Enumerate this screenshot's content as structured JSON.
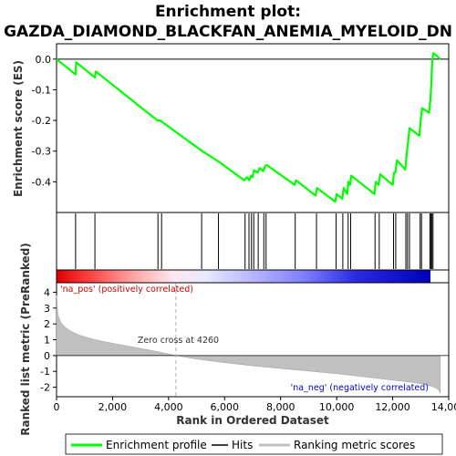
{
  "title_line1": "Enrichment plot:",
  "title_line2": "GAZDA_DIAMOND_BLACKFAN_ANEMIA_MYELOID_DN",
  "chart_data": [
    {
      "type": "line",
      "ylabel": "Enrichment score (ES)",
      "xlim": [
        0,
        14000
      ],
      "ylim": [
        -0.5,
        0.05
      ],
      "yticks": [
        "0.0",
        "-0.1",
        "-0.2",
        "-0.3",
        "-0.4"
      ],
      "ytick_values": [
        0.0,
        -0.1,
        -0.2,
        -0.3,
        -0.4
      ],
      "series": [
        {
          "name": "Enrichment profile",
          "color": "#00ff00",
          "x": [
            0,
            680,
            700,
            1370,
            1400,
            3600,
            3700,
            5200,
            5800,
            6700,
            6800,
            6880,
            6950,
            7000,
            7050,
            7180,
            7250,
            7380,
            7450,
            7500,
            8500,
            8550,
            9250,
            9300,
            9950,
            10000,
            10200,
            10250,
            10380,
            10420,
            10480,
            10520,
            11350,
            11400,
            11500,
            11550,
            12000,
            12050,
            12100,
            12150,
            12450,
            12500,
            12550,
            12600,
            12950,
            13000,
            13050,
            13300,
            13350,
            13380,
            13400,
            13420,
            13450,
            13700
          ],
          "y": [
            0.0,
            -0.05,
            -0.01,
            -0.06,
            -0.04,
            -0.2,
            -0.2,
            -0.3,
            -0.335,
            -0.395,
            -0.385,
            -0.395,
            -0.38,
            -0.385,
            -0.362,
            -0.37,
            -0.355,
            -0.365,
            -0.348,
            -0.345,
            -0.41,
            -0.395,
            -0.445,
            -0.42,
            -0.465,
            -0.44,
            -0.455,
            -0.42,
            -0.44,
            -0.4,
            -0.41,
            -0.38,
            -0.44,
            -0.4,
            -0.41,
            -0.375,
            -0.41,
            -0.37,
            -0.37,
            -0.33,
            -0.36,
            -0.31,
            -0.27,
            -0.225,
            -0.25,
            -0.2,
            -0.16,
            -0.175,
            -0.13,
            -0.08,
            -0.03,
            0.0,
            0.02,
            0.0
          ]
        }
      ]
    },
    {
      "type": "scatter",
      "title": "Hits",
      "xlim": [
        0,
        14000
      ],
      "hits": [
        680,
        1370,
        3620,
        3750,
        5180,
        5780,
        6730,
        6870,
        6960,
        7040,
        7200,
        7400,
        7480,
        8520,
        9280,
        9980,
        10220,
        10410,
        10500,
        11370,
        11520,
        12030,
        12110,
        12470,
        12530,
        12600,
        12980,
        13030,
        13330,
        13360,
        13400,
        13440
      ]
    },
    {
      "type": "area",
      "ylabel": "Ranked list metric (PreRanked)",
      "xlabel": "Rank in Ordered Dataset",
      "xlim": [
        0,
        14000
      ],
      "ylim": [
        -2.6,
        4.6
      ],
      "xticks": [
        "0",
        "2,000",
        "4,000",
        "6,000",
        "8,000",
        "10,000",
        "12,000",
        "14,000"
      ],
      "xtick_values": [
        0,
        2000,
        4000,
        6000,
        8000,
        10000,
        12000,
        14000
      ],
      "yticks": [
        "4",
        "3",
        "2",
        "1",
        "0",
        "-1",
        "-2"
      ],
      "ytick_values": [
        4,
        3,
        2,
        1,
        0,
        -1,
        -2
      ],
      "series": [
        {
          "name": "Ranking metric scores",
          "color": "#c0c0c0",
          "x": [
            0,
            50,
            150,
            300,
            500,
            800,
            1200,
            1700,
            2300,
            3000,
            3800,
            4260,
            5000,
            6000,
            7000,
            8000,
            9000,
            10000,
            11000,
            12000,
            12800,
            13200,
            13400,
            13550,
            13650,
            13700
          ],
          "y": [
            3.8,
            2.6,
            2.1,
            1.8,
            1.55,
            1.3,
            1.08,
            0.88,
            0.68,
            0.45,
            0.18,
            0.0,
            -0.22,
            -0.45,
            -0.65,
            -0.82,
            -0.98,
            -1.15,
            -1.35,
            -1.55,
            -1.72,
            -1.85,
            -1.95,
            -2.05,
            -2.2,
            -2.4
          ]
        }
      ],
      "zero_cross_label": "Zero cross at 4260",
      "zero_cross_value": 4260,
      "pos_label": "'na_pos' (positively correlated)",
      "neg_label": "'na_neg' (negatively correlated)",
      "pos_color": "#ff0000",
      "neg_color": "#0000ff"
    }
  ],
  "legend": {
    "items": [
      {
        "label": "Enrichment profile",
        "color": "#00ff00"
      },
      {
        "label": "Hits",
        "color": "#000000"
      },
      {
        "label": "Ranking metric scores",
        "color": "#c0c0c0"
      }
    ]
  }
}
